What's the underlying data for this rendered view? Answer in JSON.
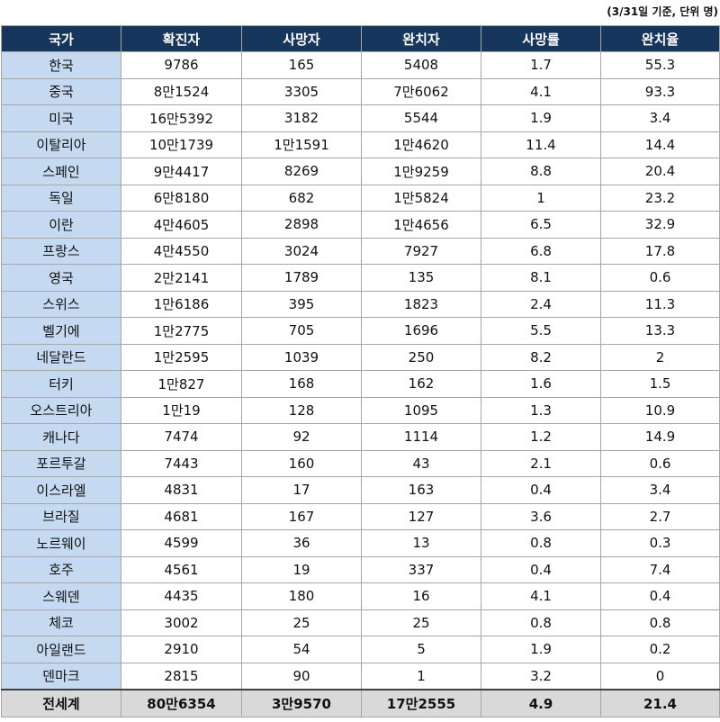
{
  "note": "(3/31일 기준, 단위 명)",
  "columns": [
    "국가",
    "확진자",
    "사망자",
    "완치자",
    "사망률",
    "완치율"
  ],
  "rows": [
    [
      "한국",
      "9786",
      "165",
      "5408",
      "1.7",
      "55.3"
    ],
    [
      "중국",
      "8만1524",
      "3305",
      "7만6062",
      "4.1",
      "93.3"
    ],
    [
      "미국",
      "16만5392",
      "3182",
      "5544",
      "1.9",
      "3.4"
    ],
    [
      "이탈리아",
      "10만1739",
      "1만1591",
      "1만4620",
      "11.4",
      "14.4"
    ],
    [
      "스페인",
      "9만4417",
      "8269",
      "1만9259",
      "8.8",
      "20.4"
    ],
    [
      "독일",
      "6만8180",
      "682",
      "1만5824",
      "1",
      "23.2"
    ],
    [
      "이란",
      "4만4605",
      "2898",
      "1만4656",
      "6.5",
      "32.9"
    ],
    [
      "프랑스",
      "4만4550",
      "3024",
      "7927",
      "6.8",
      "17.8"
    ],
    [
      "영국",
      "2만2141",
      "1789",
      "135",
      "8.1",
      "0.6"
    ],
    [
      "스위스",
      "1만6186",
      "395",
      "1823",
      "2.4",
      "11.3"
    ],
    [
      "벨기에",
      "1만2775",
      "705",
      "1696",
      "5.5",
      "13.3"
    ],
    [
      "네달란드",
      "1만2595",
      "1039",
      "250",
      "8.2",
      "2"
    ],
    [
      "터키",
      "1만827",
      "168",
      "162",
      "1.6",
      "1.5"
    ],
    [
      "오스트리아",
      "1만19",
      "128",
      "1095",
      "1.3",
      "10.9"
    ],
    [
      "캐나다",
      "7474",
      "92",
      "1114",
      "1.2",
      "14.9"
    ],
    [
      "포르투갈",
      "7443",
      "160",
      "43",
      "2.1",
      "0.6"
    ],
    [
      "이스라엘",
      "4831",
      "17",
      "163",
      "0.4",
      "3.4"
    ],
    [
      "브라질",
      "4681",
      "167",
      "127",
      "3.6",
      "2.7"
    ],
    [
      "노르웨이",
      "4599",
      "36",
      "13",
      "0.8",
      "0.3"
    ],
    [
      "호주",
      "4561",
      "19",
      "337",
      "0.4",
      "7.4"
    ],
    [
      "스웨덴",
      "4435",
      "180",
      "16",
      "4.1",
      "0.4"
    ],
    [
      "체코",
      "3002",
      "25",
      "25",
      "0.8",
      "0.8"
    ],
    [
      "아일랜드",
      "2910",
      "54",
      "5",
      "1.9",
      "0.2"
    ],
    [
      "덴마크",
      "2815",
      "90",
      "1",
      "3.2",
      "0"
    ]
  ],
  "total": [
    "전세계",
    "80만6354",
    "3만9570",
    "17만2555",
    "4.9",
    "21.4"
  ],
  "colors": {
    "header_bg": "#16365c",
    "header_text": "#ffffff",
    "country_cell_bg": "#c5d9f1",
    "total_row_bg": "#d9d9d9",
    "border": "#a6a6a6"
  }
}
